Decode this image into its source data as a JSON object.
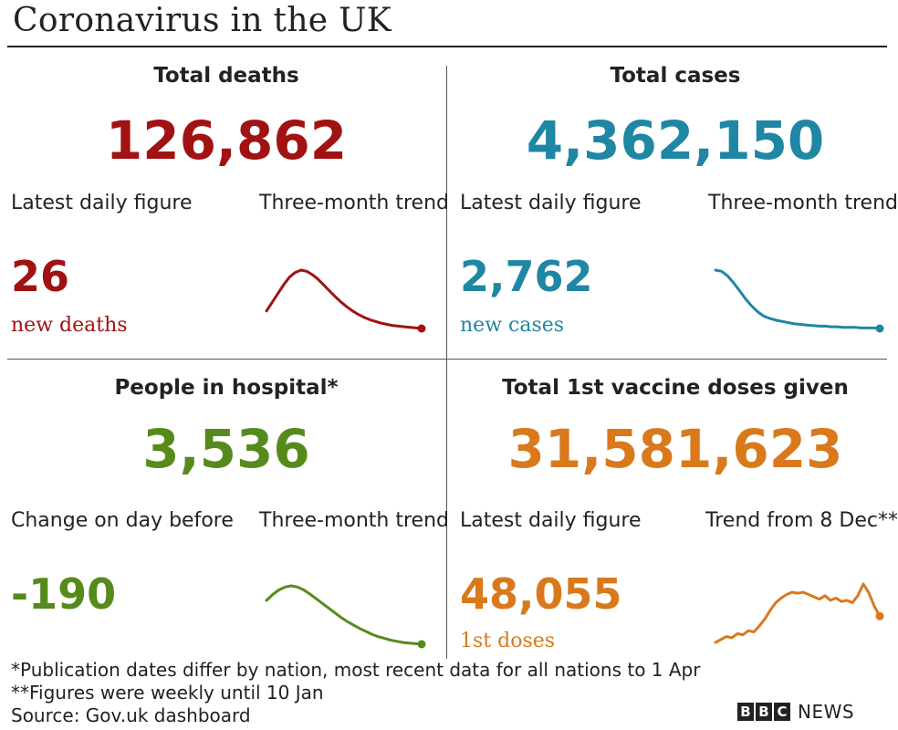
{
  "title": "Coronavirus in the UK",
  "colors": {
    "deaths": "#a11212",
    "cases": "#1f86a3",
    "hospital": "#568b1c",
    "vaccine": "#d9791c"
  },
  "panels": {
    "deaths": {
      "heading": "Total deaths",
      "total": "126,862",
      "left_label": "Latest daily figure",
      "right_label": "Three-month trend",
      "latest": "26",
      "unit": "new deaths"
    },
    "cases": {
      "heading": "Total cases",
      "total": "4,362,150",
      "left_label": "Latest daily figure",
      "right_label": "Three-month trend",
      "latest": "2,762",
      "unit": "new cases"
    },
    "hospital": {
      "heading": "People in hospital*",
      "total": "3,536",
      "left_label": "Change on day before",
      "right_label": "Three-month trend",
      "latest": "-190",
      "unit": ""
    },
    "vaccine": {
      "heading": "Total 1st vaccine doses given",
      "total": "31,581,623",
      "left_label": "Latest daily figure",
      "right_label": "Trend from 8 Dec**",
      "latest": "48,055",
      "unit": "1st doses"
    }
  },
  "notes": {
    "line1": "*Publication dates differ by nation, most recent data for all nations to 1 Apr",
    "line2": "**Figures were weekly until 10 Jan",
    "line3": "Source: Gov.uk dashboard"
  },
  "brand": {
    "letters": [
      "B",
      "B",
      "C"
    ],
    "news": "NEWS"
  },
  "chart_data": [
    {
      "type": "line",
      "name_ref": "deaths",
      "values": [
        0.3,
        0.45,
        0.6,
        0.75,
        0.88,
        0.96,
        1.0,
        0.98,
        0.92,
        0.84,
        0.74,
        0.64,
        0.54,
        0.45,
        0.37,
        0.3,
        0.24,
        0.19,
        0.15,
        0.12,
        0.09,
        0.07,
        0.05,
        0.04,
        0.03,
        0.02,
        0.01,
        0.0
      ]
    },
    {
      "type": "line",
      "name_ref": "cases",
      "values": [
        1.0,
        0.98,
        0.9,
        0.78,
        0.64,
        0.5,
        0.38,
        0.28,
        0.21,
        0.17,
        0.14,
        0.12,
        0.1,
        0.08,
        0.07,
        0.06,
        0.05,
        0.04,
        0.04,
        0.03,
        0.03,
        0.02,
        0.02,
        0.02,
        0.01,
        0.01,
        0.01,
        0.0
      ]
    },
    {
      "type": "line",
      "name_ref": "hospital",
      "values": [
        0.75,
        0.85,
        0.93,
        0.98,
        1.0,
        0.98,
        0.93,
        0.86,
        0.78,
        0.7,
        0.62,
        0.54,
        0.46,
        0.39,
        0.33,
        0.27,
        0.22,
        0.17,
        0.13,
        0.1,
        0.07,
        0.05,
        0.03,
        0.02,
        0.01,
        0.0
      ]
    },
    {
      "type": "line",
      "name_ref": "vaccine",
      "values": [
        0.0,
        0.05,
        0.1,
        0.08,
        0.15,
        0.13,
        0.2,
        0.18,
        0.28,
        0.4,
        0.55,
        0.68,
        0.76,
        0.82,
        0.86,
        0.84,
        0.86,
        0.82,
        0.78,
        0.74,
        0.8,
        0.72,
        0.76,
        0.7,
        0.72,
        0.68,
        0.8,
        1.0,
        0.85,
        0.62,
        0.45
      ]
    }
  ]
}
